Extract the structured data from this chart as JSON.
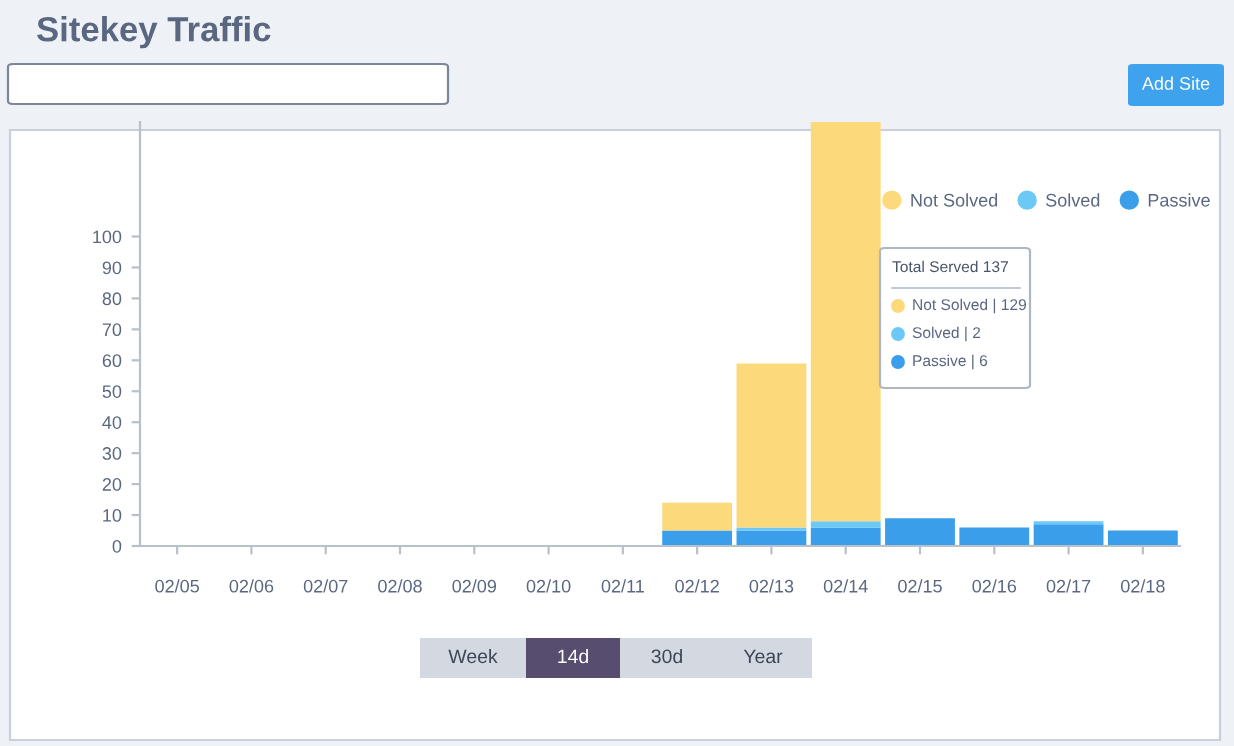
{
  "chart_data": {
    "type": "bar",
    "title": "Sitekey Traffic",
    "stacked": true,
    "categories": [
      "02/05",
      "02/06",
      "02/07",
      "02/08",
      "02/09",
      "02/10",
      "02/11",
      "02/12",
      "02/13",
      "02/14",
      "02/15",
      "02/16",
      "02/17",
      "02/18"
    ],
    "series": [
      {
        "name": "Passive",
        "color": "#3a9eea",
        "values": [
          0,
          0,
          0,
          0,
          0,
          0,
          0,
          5,
          5,
          6,
          9,
          6,
          7,
          5
        ]
      },
      {
        "name": "Solved",
        "color": "#6cc9f5",
        "values": [
          0,
          0,
          0,
          0,
          0,
          0,
          0,
          0,
          1,
          2,
          0,
          0,
          1,
          0
        ]
      },
      {
        "name": "Not Solved",
        "color": "#fcd97a",
        "values": [
          0,
          0,
          0,
          0,
          0,
          0,
          0,
          9,
          53,
          129,
          0,
          0,
          0,
          0
        ]
      }
    ],
    "ylim": [
      0,
      137
    ],
    "yticks": [
      0,
      10,
      20,
      30,
      40,
      50,
      60,
      70,
      80,
      90,
      100
    ],
    "legend": "top right",
    "grid": false,
    "annotations": [
      "Add Site",
      "Week",
      "14d",
      "30d",
      "Year",
      "Total Served 137",
      "Not Solved | 129",
      "Solved | 2",
      "Passive | 6"
    ]
  }
}
